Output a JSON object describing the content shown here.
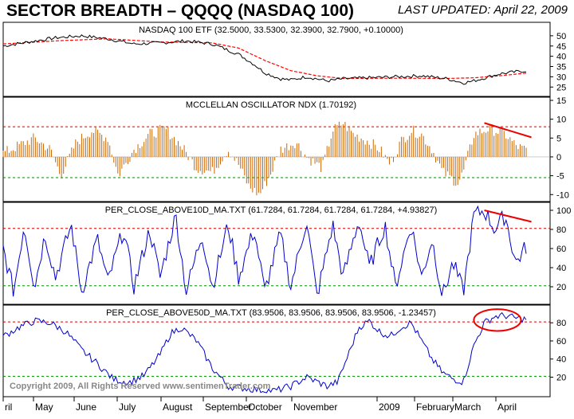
{
  "header": {
    "title": "SECTOR BREADTH – QQQQ (NASDAQ 100)",
    "updated_label": "LAST UPDATED:",
    "updated_date": "April 22, 2009"
  },
  "copyright": "Copyright 2009, All Rights Reserved   www.sentimenTrader.com",
  "x_axis": {
    "months": [
      "ril",
      "May",
      "June",
      "July",
      "August",
      "September",
      "October",
      "November",
      "2009",
      "February",
      "March",
      "April"
    ]
  },
  "colors": {
    "price": "#000000",
    "ma": "#ff0000",
    "osc_bar": "#cc6600",
    "breadth_line": "#0000cc",
    "upper_ref": "#cc0000",
    "lower_ref": "#008800",
    "annotation": "#ee0000"
  },
  "chart_data": [
    {
      "type": "line",
      "title": "NASDAQ 100 ETF (32.5000, 33.5300, 32.3900, 32.7900, +0.10000)",
      "ylim": [
        22,
        55
      ],
      "yticks": [
        50,
        45,
        40,
        35,
        30,
        25
      ],
      "series": [
        {
          "name": "QQQQ close",
          "anchors": [
            [
              0,
              45
            ],
            [
              0.05,
              47
            ],
            [
              0.1,
              49
            ],
            [
              0.15,
              50
            ],
            [
              0.2,
              48.5
            ],
            [
              0.25,
              46
            ],
            [
              0.3,
              46.5
            ],
            [
              0.35,
              47.5
            ],
            [
              0.4,
              46
            ],
            [
              0.45,
              41
            ],
            [
              0.48,
              36
            ],
            [
              0.5,
              32
            ],
            [
              0.53,
              29
            ],
            [
              0.55,
              28.5
            ],
            [
              0.58,
              30
            ],
            [
              0.62,
              28
            ],
            [
              0.65,
              29
            ],
            [
              0.7,
              29.5
            ],
            [
              0.75,
              30
            ],
            [
              0.8,
              30.5
            ],
            [
              0.85,
              29
            ],
            [
              0.88,
              27
            ],
            [
              0.9,
              28
            ],
            [
              0.95,
              31.5
            ],
            [
              1.0,
              33
            ]
          ]
        },
        {
          "name": "moving average",
          "anchors": [
            [
              0,
              46
            ],
            [
              0.1,
              47.5
            ],
            [
              0.2,
              48.5
            ],
            [
              0.3,
              47
            ],
            [
              0.4,
              46.5
            ],
            [
              0.45,
              44
            ],
            [
              0.5,
              38
            ],
            [
              0.55,
              33
            ],
            [
              0.6,
              30.5
            ],
            [
              0.65,
              29.2
            ],
            [
              0.75,
              29.3
            ],
            [
              0.85,
              29.2
            ],
            [
              0.9,
              29.5
            ],
            [
              0.95,
              30.5
            ],
            [
              1.0,
              31.8
            ]
          ]
        }
      ]
    },
    {
      "type": "bar",
      "title": "MCCLELLAN OSCILLATOR NDX (1.70192)",
      "ylim": [
        -11,
        15
      ],
      "yticks": [
        15,
        10,
        5,
        0,
        -5,
        -10
      ],
      "reference_lines": {
        "upper": 8,
        "lower": -5.5
      },
      "trend_annotation": {
        "from": [
          0.92,
          9
        ],
        "to": [
          1.01,
          5.2
        ]
      },
      "anchors": [
        [
          0,
          1
        ],
        [
          0.03,
          3
        ],
        [
          0.06,
          5
        ],
        [
          0.09,
          2
        ],
        [
          0.11,
          -5
        ],
        [
          0.14,
          4
        ],
        [
          0.17,
          7
        ],
        [
          0.2,
          5
        ],
        [
          0.22,
          -5
        ],
        [
          0.25,
          2
        ],
        [
          0.28,
          6
        ],
        [
          0.31,
          7.5
        ],
        [
          0.34,
          3
        ],
        [
          0.37,
          -3
        ],
        [
          0.4,
          -4
        ],
        [
          0.43,
          2
        ],
        [
          0.45,
          -2
        ],
        [
          0.47,
          -8
        ],
        [
          0.49,
          -10
        ],
        [
          0.51,
          -5
        ],
        [
          0.53,
          2
        ],
        [
          0.56,
          4
        ],
        [
          0.58,
          0
        ],
        [
          0.61,
          -3
        ],
        [
          0.63,
          7
        ],
        [
          0.65,
          9
        ],
        [
          0.67,
          6
        ],
        [
          0.7,
          4
        ],
        [
          0.72,
          2
        ],
        [
          0.74,
          -2
        ],
        [
          0.76,
          4
        ],
        [
          0.78,
          7
        ],
        [
          0.8,
          6
        ],
        [
          0.82,
          2
        ],
        [
          0.84,
          -4
        ],
        [
          0.86,
          -6
        ],
        [
          0.87,
          -7
        ],
        [
          0.88,
          -4
        ],
        [
          0.9,
          6
        ],
        [
          0.93,
          7.5
        ],
        [
          0.96,
          6
        ],
        [
          0.98,
          3
        ],
        [
          1.0,
          1.7
        ]
      ]
    },
    {
      "type": "line",
      "title": "PER_CLOSE_ABOVE10D_MA.TXT (61.7284, 61.7284, 61.7284, 61.7284, +4.93827)",
      "ylim": [
        5,
        105
      ],
      "yticks": [
        100,
        80,
        60,
        40,
        20
      ],
      "reference_lines": {
        "upper": 81,
        "lower": 21
      },
      "trend_annotation": {
        "from": [
          0.92,
          100
        ],
        "to": [
          1.01,
          88
        ]
      },
      "anchors": [
        [
          0,
          60
        ],
        [
          0.02,
          15
        ],
        [
          0.04,
          85
        ],
        [
          0.06,
          20
        ],
        [
          0.08,
          75
        ],
        [
          0.1,
          30
        ],
        [
          0.13,
          85
        ],
        [
          0.15,
          15
        ],
        [
          0.18,
          70
        ],
        [
          0.2,
          25
        ],
        [
          0.23,
          80
        ],
        [
          0.25,
          20
        ],
        [
          0.28,
          80
        ],
        [
          0.3,
          30
        ],
        [
          0.33,
          95
        ],
        [
          0.35,
          15
        ],
        [
          0.38,
          75
        ],
        [
          0.4,
          20
        ],
        [
          0.43,
          85
        ],
        [
          0.45,
          30
        ],
        [
          0.48,
          80
        ],
        [
          0.5,
          15
        ],
        [
          0.53,
          75
        ],
        [
          0.55,
          20
        ],
        [
          0.58,
          90
        ],
        [
          0.6,
          10
        ],
        [
          0.63,
          85
        ],
        [
          0.65,
          30
        ],
        [
          0.68,
          90
        ],
        [
          0.7,
          40
        ],
        [
          0.73,
          85
        ],
        [
          0.75,
          20
        ],
        [
          0.78,
          85
        ],
        [
          0.8,
          30
        ],
        [
          0.82,
          70
        ],
        [
          0.84,
          10
        ],
        [
          0.86,
          45
        ],
        [
          0.88,
          15
        ],
        [
          0.9,
          95
        ],
        [
          0.92,
          100
        ],
        [
          0.94,
          80
        ],
        [
          0.96,
          95
        ],
        [
          0.98,
          45
        ],
        [
          1.0,
          62
        ]
      ]
    },
    {
      "type": "line",
      "title": "PER_CLOSE_ABOVE50D_MA.TXT (83.9506, 83.9506, 83.9506, 83.9506, -1.23457)",
      "ylim": [
        2,
        96
      ],
      "yticks": [
        80,
        60,
        40,
        20
      ],
      "reference_lines": {
        "upper": 81,
        "lower": 21
      },
      "ellipse_annotation": {
        "center": [
          0.945,
          83
        ],
        "rx": 0.045,
        "ry": 12
      },
      "anchors": [
        [
          0,
          65
        ],
        [
          0.03,
          75
        ],
        [
          0.06,
          82
        ],
        [
          0.09,
          80
        ],
        [
          0.12,
          70
        ],
        [
          0.15,
          50
        ],
        [
          0.18,
          35
        ],
        [
          0.21,
          18
        ],
        [
          0.24,
          14
        ],
        [
          0.27,
          22
        ],
        [
          0.3,
          45
        ],
        [
          0.32,
          68
        ],
        [
          0.34,
          75
        ],
        [
          0.37,
          60
        ],
        [
          0.4,
          30
        ],
        [
          0.43,
          10
        ],
        [
          0.46,
          8
        ],
        [
          0.49,
          6
        ],
        [
          0.52,
          5
        ],
        [
          0.55,
          10
        ],
        [
          0.58,
          20
        ],
        [
          0.6,
          15
        ],
        [
          0.62,
          10
        ],
        [
          0.64,
          15
        ],
        [
          0.66,
          45
        ],
        [
          0.68,
          75
        ],
        [
          0.7,
          82
        ],
        [
          0.72,
          70
        ],
        [
          0.74,
          65
        ],
        [
          0.76,
          75
        ],
        [
          0.78,
          80
        ],
        [
          0.8,
          60
        ],
        [
          0.82,
          40
        ],
        [
          0.84,
          25
        ],
        [
          0.86,
          18
        ],
        [
          0.88,
          15
        ],
        [
          0.9,
          55
        ],
        [
          0.92,
          80
        ],
        [
          0.94,
          87
        ],
        [
          0.96,
          88
        ],
        [
          0.98,
          85
        ],
        [
          1.0,
          84
        ]
      ]
    }
  ]
}
